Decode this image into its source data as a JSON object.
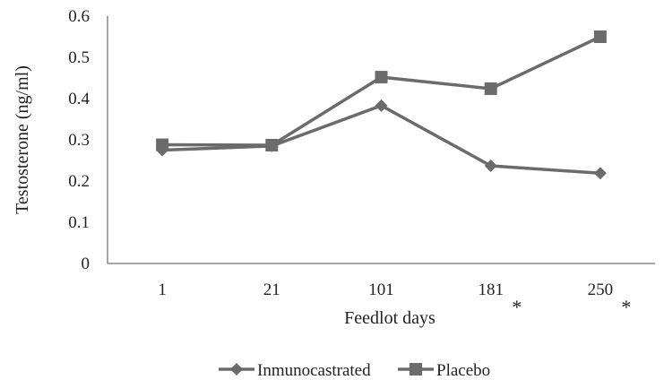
{
  "chart_data": {
    "type": "line",
    "xlabel": "Feedlot days",
    "ylabel": "Testosterone (ng/ml)",
    "categories": [
      "1",
      "21",
      "101",
      "181",
      "250"
    ],
    "category_markers": [
      "",
      "",
      "",
      "*",
      "*"
    ],
    "ylim": [
      0,
      0.6
    ],
    "y_ticks": [
      "0",
      "0.1",
      "0.2",
      "0.3",
      "0.4",
      "0.5",
      "0.6"
    ],
    "grid": false,
    "legend_position": "bottom",
    "series": [
      {
        "name": "Inmunocastrated",
        "marker": "diamond",
        "color": "#6b6b6b",
        "values": [
          0.275,
          0.285,
          0.383,
          0.237,
          0.219
        ]
      },
      {
        "name": "Placebo",
        "marker": "square",
        "color": "#6b6b6b",
        "values": [
          0.288,
          0.287,
          0.452,
          0.424,
          0.55
        ]
      }
    ]
  }
}
